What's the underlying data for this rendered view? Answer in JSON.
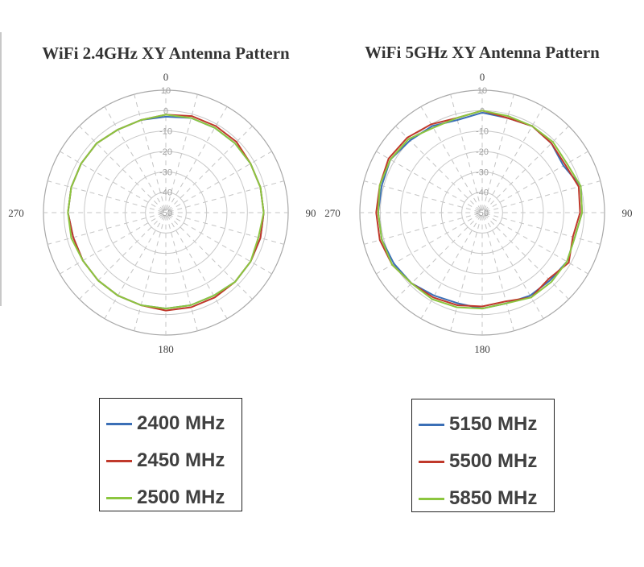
{
  "colors": {
    "series_a": "#3b6fb6",
    "series_b": "#c0392b",
    "series_c": "#8cc63f",
    "grid": "#bfbfbf",
    "text": "#404040"
  },
  "chart_data": [
    {
      "type": "polar-line",
      "title": "WiFi 2.4GHz XY Antenna Pattern",
      "radial_ticks": [
        "10",
        "0",
        "-10",
        "-20",
        "-30",
        "-40",
        "-50"
      ],
      "radial_range": [
        -50,
        10
      ],
      "angle_labels": [
        "0",
        "90",
        "180",
        "270"
      ],
      "angles_deg": [
        0,
        15,
        30,
        45,
        60,
        75,
        90,
        105,
        120,
        135,
        150,
        165,
        180,
        195,
        210,
        225,
        240,
        255,
        270,
        285,
        300,
        315,
        330,
        345
      ],
      "series": [
        {
          "name": "2400 MHz",
          "color_key": "series_a",
          "values": [
            -3,
            -2,
            -2,
            -2,
            -2,
            -2,
            -2,
            -2,
            -2,
            -2,
            -3,
            -3,
            -3,
            -3,
            -3,
            -3,
            -3,
            -3,
            -2,
            -2,
            -2,
            -2,
            -3,
            -3
          ]
        },
        {
          "name": "2450 MHz",
          "color_key": "series_b",
          "values": [
            -2,
            -1,
            -1,
            -1,
            -2,
            -2,
            -2,
            -2,
            -2,
            -2,
            -2,
            -2,
            -2,
            -3,
            -3,
            -3,
            -3,
            -3,
            -2,
            -2,
            -2,
            -2,
            -3,
            -3
          ]
        },
        {
          "name": "2500 MHz",
          "color_key": "series_c",
          "values": [
            -2,
            -2,
            -2,
            -2,
            -2,
            -2,
            -2,
            -3,
            -2,
            -2,
            -3,
            -3,
            -3,
            -3,
            -3,
            -3,
            -3,
            -2,
            -2,
            -2,
            -2,
            -2,
            -3,
            -3
          ]
        }
      ]
    },
    {
      "type": "polar-line",
      "title": "WiFi 5GHz XY Antenna Pattern",
      "radial_ticks": [
        "10",
        "0",
        "-10",
        "-20",
        "-30",
        "-40",
        "-50"
      ],
      "radial_range": [
        -50,
        10
      ],
      "angle_labels": [
        "0",
        "90",
        "180",
        "270"
      ],
      "angles_deg": [
        0,
        15,
        30,
        45,
        60,
        75,
        90,
        105,
        120,
        135,
        150,
        165,
        180,
        195,
        210,
        225,
        240,
        255,
        270,
        285,
        300,
        315,
        330,
        345
      ],
      "series": [
        {
          "name": "5150 MHz",
          "color_key": "series_a",
          "values": [
            -1,
            -2,
            -1,
            -2,
            -4,
            0,
            -1,
            -3,
            -2,
            -3,
            -3,
            -4,
            -3,
            -4,
            -3,
            -1,
            0,
            1,
            1,
            1,
            2,
            0,
            -1,
            -3
          ]
        },
        {
          "name": "5500 MHz",
          "color_key": "series_b",
          "values": [
            0,
            -2,
            -1,
            -2,
            -3,
            -1,
            -2,
            -4,
            -1,
            -4,
            -2,
            -5,
            -4,
            -3,
            -2,
            -1,
            1,
            2,
            2,
            2,
            3,
            2,
            0,
            -2
          ]
        },
        {
          "name": "5850 MHz",
          "color_key": "series_c",
          "values": [
            0,
            -1,
            -1,
            -1,
            -2,
            0,
            -1,
            -3,
            -2,
            -2,
            -2,
            -4,
            -3,
            -2,
            -1,
            -1,
            1,
            1,
            1,
            2,
            2,
            1,
            -2,
            -2
          ]
        }
      ]
    }
  ],
  "legends": {
    "left": [
      "2400 MHz",
      "2450 MHz",
      "2500 MHz"
    ],
    "right": [
      "5150 MHz",
      "5500 MHz",
      "5850 MHz"
    ]
  }
}
